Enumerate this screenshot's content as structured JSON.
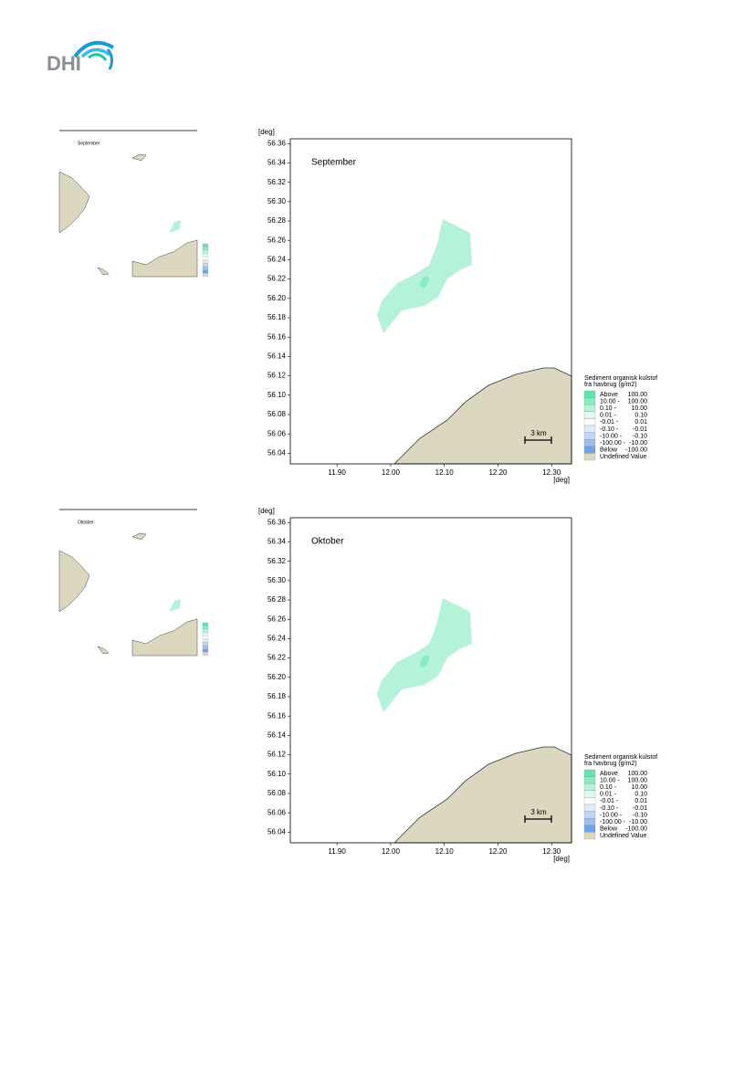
{
  "header": {
    "logo": "DHI"
  },
  "axes": {
    "y_unit": "[deg]",
    "x_unit": "[deg]",
    "xlim": [
      11.813,
      12.337
    ],
    "ylim": [
      56.029,
      56.365
    ],
    "xticks": [
      {
        "value": 11.9,
        "label": "11.90"
      },
      {
        "value": 12.0,
        "label": "12.00"
      },
      {
        "value": 12.1,
        "label": "12.10"
      },
      {
        "value": 12.2,
        "label": "12.20"
      },
      {
        "value": 12.3,
        "label": "12.30"
      }
    ],
    "yticks": [
      {
        "value": 56.04,
        "label": "56.04"
      },
      {
        "value": 56.06,
        "label": "56.06"
      },
      {
        "value": 56.08,
        "label": "56.08"
      },
      {
        "value": 56.1,
        "label": "56.10"
      },
      {
        "value": 56.12,
        "label": "56.12"
      },
      {
        "value": 56.14,
        "label": "56.14"
      },
      {
        "value": 56.16,
        "label": "56.16"
      },
      {
        "value": 56.18,
        "label": "56.18"
      },
      {
        "value": 56.2,
        "label": "56.20"
      },
      {
        "value": 56.22,
        "label": "56.22"
      },
      {
        "value": 56.24,
        "label": "56.24"
      },
      {
        "value": 56.26,
        "label": "56.26"
      },
      {
        "value": 56.28,
        "label": "56.28"
      },
      {
        "value": 56.3,
        "label": "56.30"
      },
      {
        "value": 56.32,
        "label": "56.32"
      },
      {
        "value": 56.34,
        "label": "56.34"
      },
      {
        "value": 56.36,
        "label": "56.36"
      }
    ],
    "scale_bar": "3 km"
  },
  "legend": {
    "title": [
      "Sediment organisk kulstof",
      "fra havbrug (g/m2)"
    ],
    "entries": [
      {
        "label": "Above",
        "value": "100.00",
        "color": "#5fe6ad"
      },
      {
        "label": "10.00 -",
        "value": "100.00",
        "color": "#86edc2"
      },
      {
        "label": "0.10 -",
        "value": "10.00",
        "color": "#b5f3d9"
      },
      {
        "label": "0.01 -",
        "value": "0.10",
        "color": "#e2f9ef"
      },
      {
        "label": "-0.01 -",
        "value": "0.01",
        "color": "#ffffff"
      },
      {
        "label": "-0.10 -",
        "value": "-0.01",
        "color": "#e0eaf8"
      },
      {
        "label": "-10.00 -",
        "value": "-0.10",
        "color": "#c0d6f2"
      },
      {
        "label": "-100.00 -",
        "value": "-10.00",
        "color": "#9ebfee"
      },
      {
        "label": "Below",
        "value": "-100.00",
        "color": "#6fa3e8"
      },
      {
        "label": "Undefined Value",
        "color": "#dcd8c0"
      }
    ]
  },
  "panels": [
    {
      "overview_title": "September",
      "title": "September"
    },
    {
      "overview_title": "Oktober",
      "title": "Oktober"
    }
  ]
}
